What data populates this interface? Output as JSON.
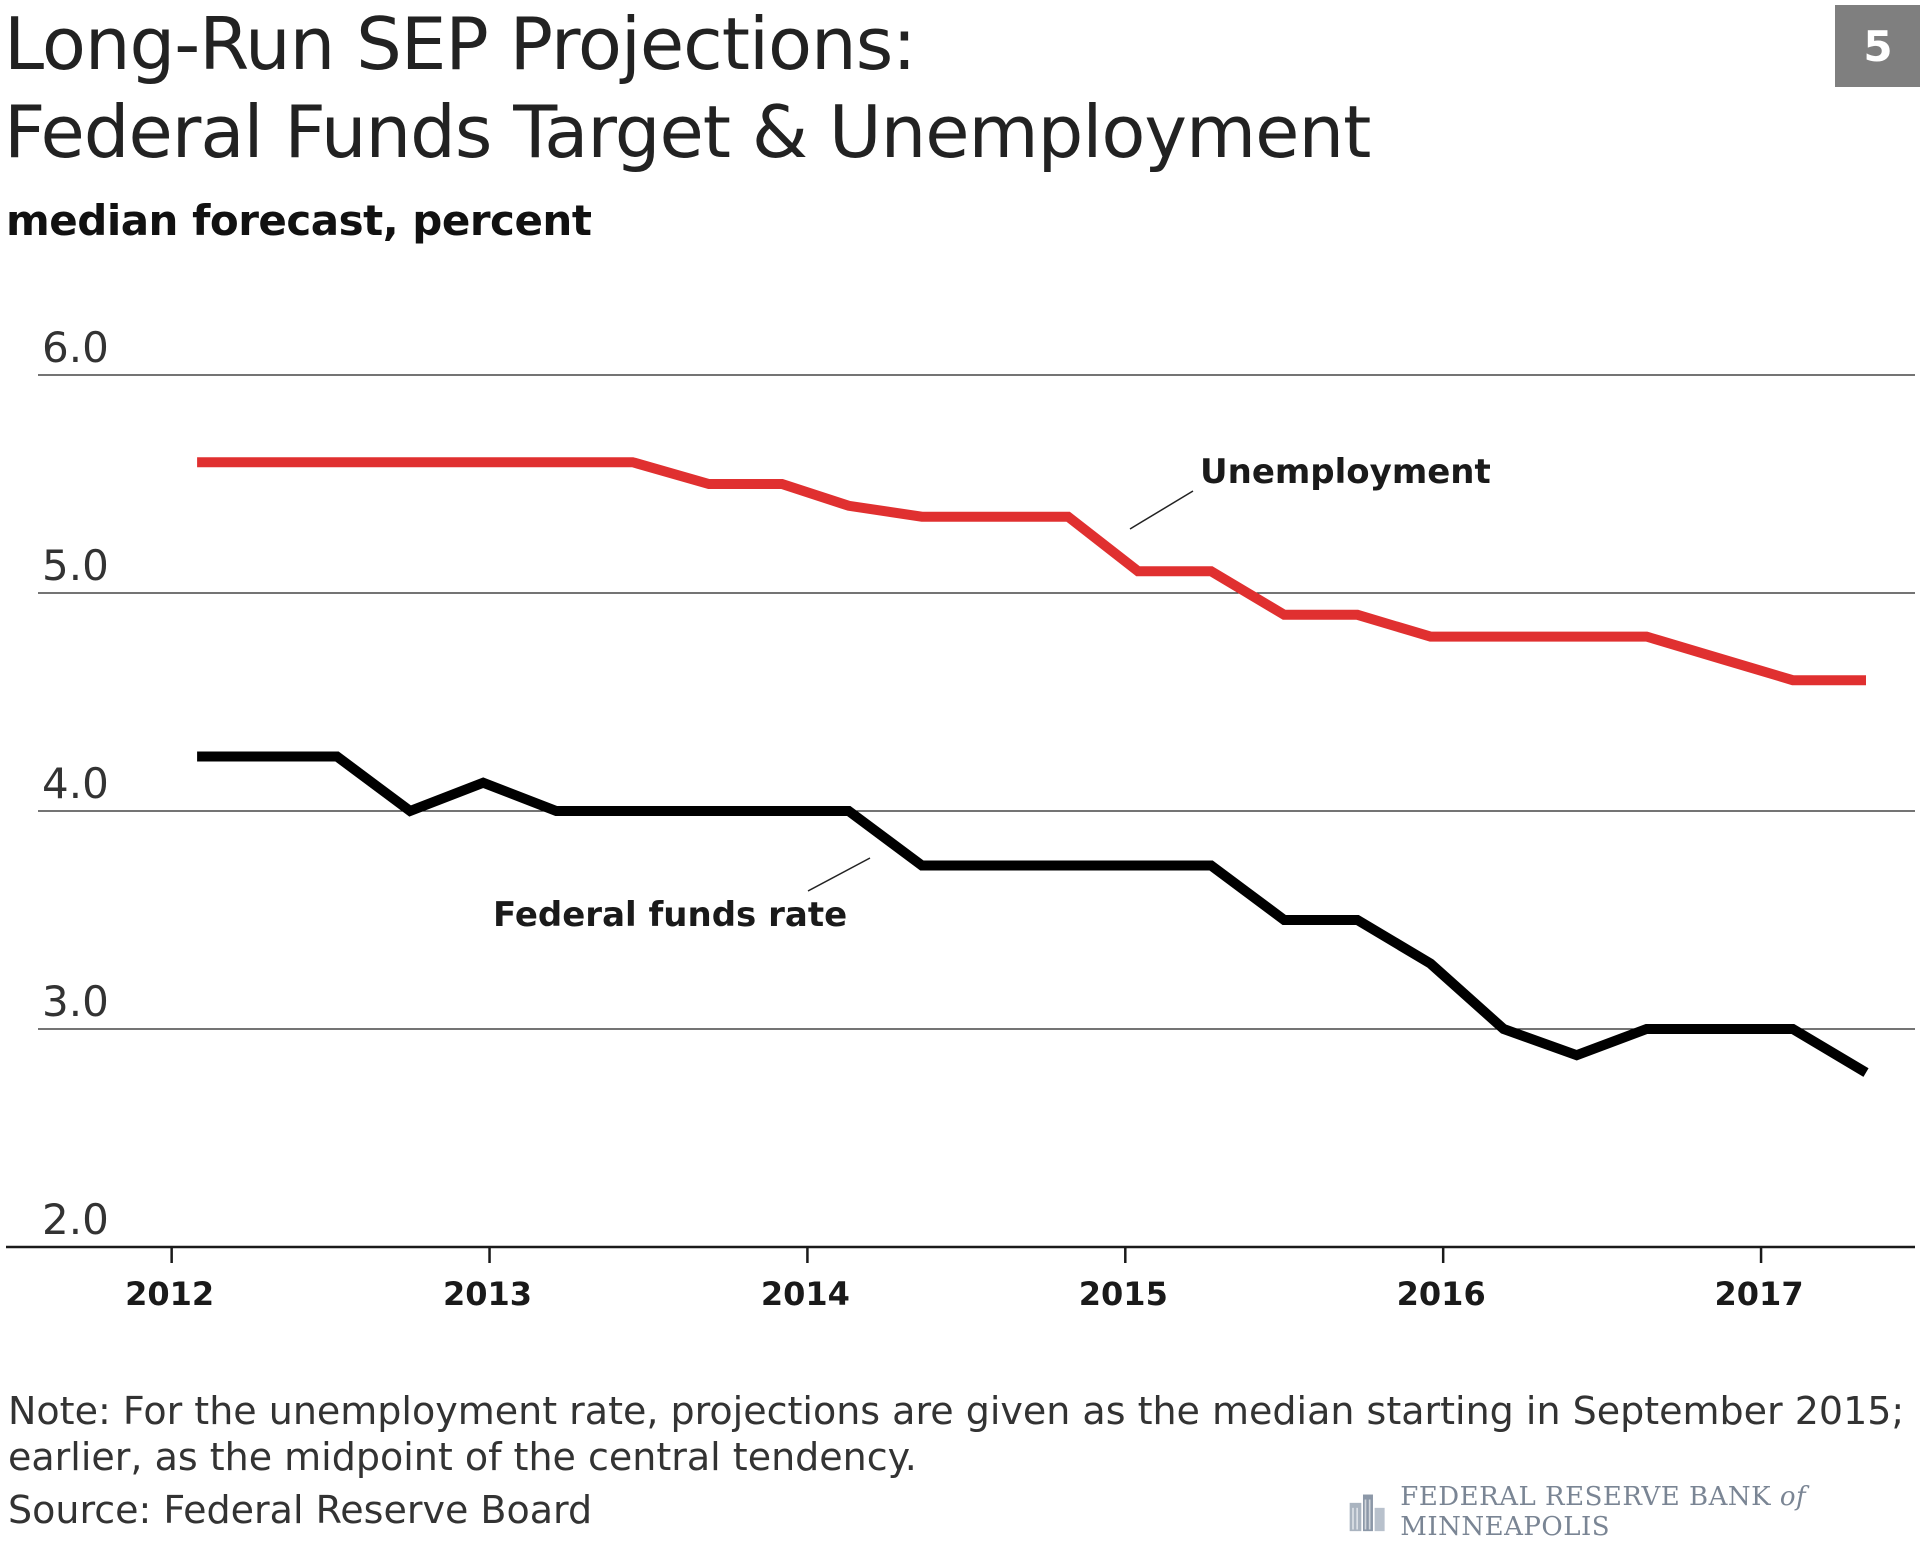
{
  "header": {
    "title_line1": "Long-Run SEP Projections:",
    "title_line2": "Federal Funds Target & Unemployment",
    "subtitle": "median forecast, percent",
    "badge": "5"
  },
  "footer": {
    "note_line1": "Note: For the unemployment rate, projections are given as the median starting in September 2015;",
    "note_line2": "earlier, as the midpoint of the central tendency.",
    "source": "Source: Federal Reserve Board",
    "logo_text_pre": "FEDERAL RESERVE BANK ",
    "logo_text_of": "of",
    "logo_text_post": " MINNEAPOLIS",
    "logo_icon": "fed-building-icon"
  },
  "colors": {
    "unemployment": "#e03030",
    "fed_funds": "#000000",
    "grid": "#222222",
    "badge": "#7f7f7f"
  },
  "chart_data": {
    "type": "line",
    "ylim": [
      2.0,
      6.0
    ],
    "yticks": [
      "2.0",
      "3.0",
      "4.0",
      "5.0",
      "6.0"
    ],
    "yticks_values": [
      2.0,
      3.0,
      4.0,
      5.0,
      6.0
    ],
    "xlim": [
      2011.46,
      2017.5
    ],
    "xticks": [
      "2012",
      "2013",
      "2014",
      "2015",
      "2016",
      "2017"
    ],
    "xticks_values": [
      2012,
      2013,
      2014,
      2015,
      2016,
      2017
    ],
    "grid": "horizontal",
    "series": [
      {
        "name": "Unemployment",
        "color_key": "unemployment",
        "x": [
          2012.08,
          2012.5,
          2012.75,
          2013.0,
          2013.25,
          2013.45,
          2013.69,
          2013.92,
          2014.13,
          2014.36,
          2014.58,
          2014.82,
          2015.04,
          2015.27,
          2015.5,
          2015.73,
          2015.96,
          2016.19,
          2016.42,
          2016.64,
          2016.87,
          2017.1,
          2017.33
        ],
        "values": [
          5.6,
          5.6,
          5.6,
          5.6,
          5.6,
          5.6,
          5.5,
          5.5,
          5.4,
          5.35,
          5.35,
          5.35,
          5.1,
          5.1,
          4.9,
          4.9,
          4.8,
          4.8,
          4.8,
          4.8,
          4.7,
          4.6,
          4.6
        ]
      },
      {
        "name": "Federal funds rate",
        "color_key": "fed_funds",
        "x": [
          2012.08,
          2012.3,
          2012.52,
          2012.75,
          2012.98,
          2013.21,
          2013.44,
          2013.67,
          2013.9,
          2014.13,
          2014.36,
          2014.59,
          2014.82,
          2015.04,
          2015.27,
          2015.5,
          2015.73,
          2015.96,
          2016.19,
          2016.42,
          2016.64,
          2016.87,
          2017.1,
          2017.33
        ],
        "values": [
          4.25,
          4.25,
          4.25,
          4.0,
          4.13,
          4.0,
          4.0,
          4.0,
          4.0,
          4.0,
          3.75,
          3.75,
          3.75,
          3.75,
          3.75,
          3.5,
          3.5,
          3.3,
          3.0,
          2.88,
          3.0,
          3.0,
          3.0,
          2.8
        ]
      }
    ],
    "annotations": [
      {
        "text": "Unemployment",
        "series": "Unemployment"
      },
      {
        "text": "Federal funds rate",
        "series": "Federal funds rate"
      }
    ]
  }
}
